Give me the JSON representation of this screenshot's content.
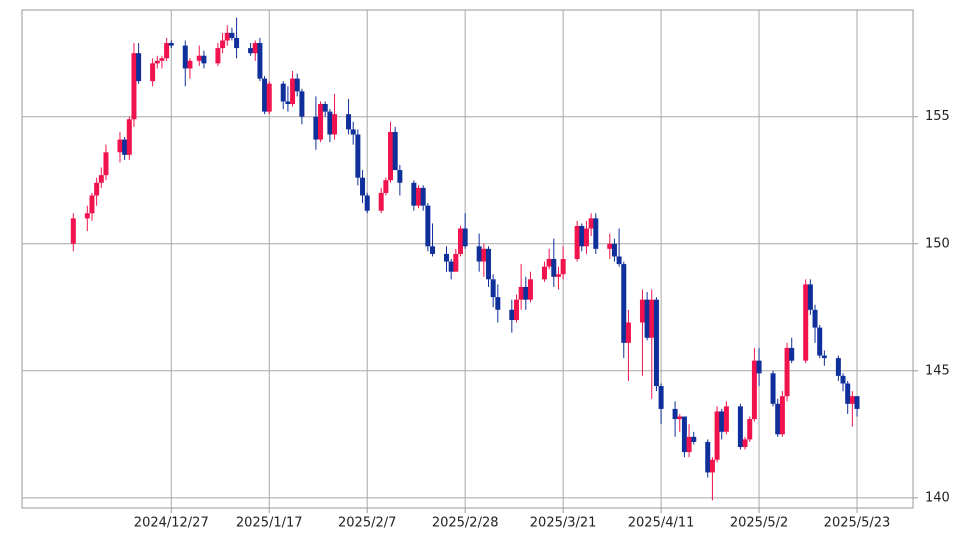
{
  "chart_data": {
    "type": "candlestick",
    "x": [
      "2024/12/06",
      "2024/12/09",
      "2024/12/10",
      "2024/12/11",
      "2024/12/12",
      "2024/12/13",
      "2024/12/16",
      "2024/12/17",
      "2024/12/18",
      "2024/12/19",
      "2024/12/20",
      "2024/12/23",
      "2024/12/24",
      "2024/12/25",
      "2024/12/26",
      "2024/12/27",
      "2024/12/30",
      "2024/12/31",
      "2025/01/02",
      "2025/01/03",
      "2025/01/06",
      "2025/01/07",
      "2025/01/08",
      "2025/01/09",
      "2025/01/10",
      "2025/01/13",
      "2025/01/14",
      "2025/01/15",
      "2025/01/16",
      "2025/01/17",
      "2025/01/20",
      "2025/01/21",
      "2025/01/22",
      "2025/01/23",
      "2025/01/24",
      "2025/01/27",
      "2025/01/28",
      "2025/01/29",
      "2025/01/30",
      "2025/01/31",
      "2025/02/03",
      "2025/02/04",
      "2025/02/05",
      "2025/02/06",
      "2025/02/07",
      "2025/02/10",
      "2025/02/11",
      "2025/02/12",
      "2025/02/13",
      "2025/02/14",
      "2025/02/17",
      "2025/02/18",
      "2025/02/19",
      "2025/02/20",
      "2025/02/21",
      "2025/02/24",
      "2025/02/25",
      "2025/02/26",
      "2025/02/27",
      "2025/02/28",
      "2025/03/03",
      "2025/03/04",
      "2025/03/05",
      "2025/03/06",
      "2025/03/07",
      "2025/03/10",
      "2025/03/11",
      "2025/03/12",
      "2025/03/13",
      "2025/03/14",
      "2025/03/17",
      "2025/03/18",
      "2025/03/19",
      "2025/03/20",
      "2025/03/21",
      "2025/03/24",
      "2025/03/25",
      "2025/03/26",
      "2025/03/27",
      "2025/03/28",
      "2025/03/31",
      "2025/04/01",
      "2025/04/02",
      "2025/04/03",
      "2025/04/04",
      "2025/04/07",
      "2025/04/08",
      "2025/04/09",
      "2025/04/10",
      "2025/04/11",
      "2025/04/14",
      "2025/04/15",
      "2025/04/16",
      "2025/04/17",
      "2025/04/18",
      "2025/04/21",
      "2025/04/22",
      "2025/04/23",
      "2025/04/24",
      "2025/04/25",
      "2025/04/28",
      "2025/04/29",
      "2025/04/30",
      "2025/05/01",
      "2025/05/02",
      "2025/05/05",
      "2025/05/06",
      "2025/05/07",
      "2025/05/08",
      "2025/05/09",
      "2025/05/12",
      "2025/05/13",
      "2025/05/14",
      "2025/05/15",
      "2025/05/16",
      "2025/05/19",
      "2025/05/20",
      "2025/05/21",
      "2025/05/22",
      "2025/05/23"
    ],
    "open": [
      150.0,
      151.0,
      151.2,
      151.9,
      152.4,
      152.7,
      153.6,
      154.1,
      153.5,
      154.9,
      157.5,
      156.4,
      157.1,
      157.2,
      157.3,
      157.9,
      157.8,
      156.9,
      157.2,
      157.4,
      157.1,
      157.7,
      158.0,
      158.3,
      158.1,
      157.7,
      157.5,
      157.9,
      156.5,
      155.2,
      156.3,
      155.6,
      155.5,
      156.5,
      156.0,
      155.0,
      154.1,
      155.5,
      155.2,
      154.3,
      155.1,
      154.5,
      154.3,
      152.6,
      151.9,
      151.3,
      152.0,
      152.5,
      154.4,
      152.9,
      152.4,
      151.5,
      152.2,
      151.5,
      149.9,
      149.6,
      149.3,
      148.9,
      149.6,
      150.6,
      149.9,
      149.3,
      149.8,
      148.6,
      147.9,
      147.4,
      147.0,
      147.8,
      148.3,
      147.8,
      148.6,
      149.1,
      149.4,
      148.7,
      148.8,
      149.4,
      150.7,
      149.9,
      150.6,
      151.0,
      149.8,
      150.0,
      149.5,
      149.2,
      146.1,
      146.9,
      147.8,
      146.3,
      147.8,
      144.4,
      143.5,
      143.1,
      143.2,
      141.8,
      142.4,
      142.2,
      141.0,
      141.5,
      143.4,
      142.6,
      143.6,
      142.0,
      142.3,
      143.1,
      145.4,
      144.9,
      143.7,
      142.5,
      144.0,
      145.9,
      145.4,
      148.4,
      147.4,
      146.7,
      145.6,
      145.5,
      144.8,
      144.5,
      143.7,
      144.0
    ],
    "high": [
      151.2,
      151.5,
      152.0,
      152.6,
      153.0,
      153.9,
      154.4,
      154.2,
      155.0,
      157.9,
      157.9,
      157.3,
      157.4,
      157.4,
      158.1,
      158.0,
      158.0,
      157.3,
      157.8,
      157.6,
      157.9,
      158.3,
      158.6,
      158.5,
      158.9,
      157.9,
      158.0,
      158.1,
      156.6,
      156.4,
      156.4,
      156.2,
      156.8,
      156.7,
      156.1,
      155.8,
      155.6,
      155.6,
      155.3,
      155.9,
      155.7,
      154.8,
      154.5,
      152.9,
      152.0,
      152.2,
      152.6,
      154.8,
      154.6,
      153.1,
      152.5,
      152.3,
      152.3,
      151.6,
      150.8,
      149.9,
      149.4,
      149.8,
      150.7,
      151.2,
      150.4,
      150.0,
      149.9,
      148.8,
      148.4,
      147.8,
      148.0,
      149.2,
      148.7,
      148.9,
      149.3,
      149.8,
      150.2,
      149.1,
      149.9,
      150.9,
      150.8,
      150.9,
      151.2,
      151.2,
      150.4,
      150.2,
      150.6,
      149.3,
      147.4,
      148.2,
      148.1,
      148.2,
      147.9,
      144.5,
      143.8,
      143.3,
      143.2,
      142.9,
      142.6,
      142.3,
      141.6,
      143.6,
      143.5,
      143.8,
      143.7,
      142.4,
      143.2,
      145.9,
      145.9,
      145.0,
      143.9,
      144.2,
      146.1,
      146.3,
      148.6,
      148.6,
      147.6,
      146.8,
      145.8,
      145.6,
      144.9,
      144.6,
      144.2,
      144.0
    ],
    "low": [
      149.7,
      150.5,
      150.9,
      151.5,
      152.2,
      152.5,
      153.2,
      153.3,
      153.3,
      154.6,
      156.3,
      156.2,
      156.9,
      156.9,
      157.2,
      157.7,
      156.2,
      156.5,
      157.0,
      156.9,
      157.0,
      157.5,
      157.8,
      158.0,
      157.3,
      157.4,
      157.2,
      156.4,
      155.1,
      155.1,
      155.3,
      155.2,
      155.4,
      155.8,
      154.7,
      153.7,
      154.0,
      155.0,
      154.0,
      154.1,
      154.3,
      153.9,
      152.3,
      151.6,
      151.2,
      151.2,
      151.9,
      152.4,
      152.9,
      151.9,
      151.3,
      151.4,
      151.3,
      149.7,
      149.5,
      148.9,
      148.6,
      148.9,
      149.5,
      149.8,
      148.9,
      148.7,
      148.3,
      147.5,
      146.9,
      146.5,
      146.9,
      147.4,
      147.4,
      147.7,
      148.5,
      149.0,
      148.3,
      148.2,
      148.6,
      149.3,
      149.7,
      149.6,
      150.3,
      149.6,
      149.4,
      149.3,
      149.1,
      145.5,
      144.6,
      144.8,
      146.2,
      143.9,
      144.2,
      142.9,
      142.4,
      142.6,
      141.6,
      141.6,
      142.1,
      140.8,
      139.9,
      141.4,
      142.3,
      142.5,
      141.9,
      141.9,
      142.2,
      143.0,
      144.4,
      143.6,
      142.4,
      142.4,
      143.8,
      145.3,
      145.3,
      147.2,
      146.1,
      145.5,
      145.2,
      144.6,
      144.2,
      143.3,
      142.8,
      143.2
    ],
    "close": [
      151.0,
      151.2,
      151.9,
      152.4,
      152.7,
      153.6,
      154.1,
      153.5,
      154.9,
      157.5,
      156.4,
      157.1,
      157.2,
      157.3,
      157.9,
      157.8,
      156.9,
      157.2,
      157.4,
      157.1,
      157.7,
      158.0,
      158.3,
      158.1,
      157.7,
      157.5,
      157.9,
      156.5,
      155.2,
      156.3,
      155.6,
      155.5,
      156.5,
      156.0,
      155.0,
      154.1,
      155.5,
      155.2,
      154.3,
      155.1,
      154.5,
      154.3,
      152.6,
      151.9,
      151.3,
      152.0,
      152.5,
      154.4,
      152.9,
      152.4,
      151.5,
      152.2,
      151.5,
      149.9,
      149.6,
      149.3,
      148.9,
      149.6,
      150.6,
      149.9,
      149.3,
      149.8,
      148.6,
      147.9,
      147.4,
      147.0,
      147.8,
      148.3,
      147.8,
      148.6,
      149.1,
      149.4,
      148.7,
      148.8,
      149.4,
      150.7,
      149.9,
      150.6,
      151.0,
      149.8,
      150.0,
      149.5,
      149.2,
      146.1,
      146.9,
      147.8,
      146.3,
      147.8,
      144.4,
      143.5,
      143.1,
      143.2,
      141.8,
      142.4,
      142.2,
      141.0,
      141.5,
      143.4,
      142.6,
      143.6,
      142.0,
      142.3,
      143.1,
      145.4,
      144.9,
      143.7,
      142.5,
      144.0,
      145.9,
      145.4,
      148.4,
      147.4,
      146.7,
      145.6,
      145.5,
      144.8,
      144.5,
      143.7,
      144.0,
      143.5
    ],
    "up_color": "#f0134d",
    "down_color": "#0f2f9a",
    "xlim": [
      "2024/11/25",
      "2025/06/04"
    ],
    "xticks": [
      "2024/12/27",
      "2025/1/17",
      "2025/2/7",
      "2025/2/28",
      "2025/3/21",
      "2025/4/11",
      "2025/5/2",
      "2025/5/23"
    ],
    "ylim": [
      139.6,
      159.2
    ],
    "yticks": [
      140,
      145,
      150,
      155
    ],
    "grid": true
  }
}
